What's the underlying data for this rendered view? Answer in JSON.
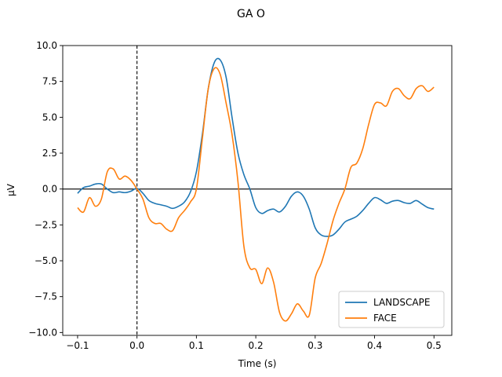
{
  "chart_data": {
    "type": "line",
    "title": "GA O",
    "xlabel": "Time (s)",
    "ylabel": "µV",
    "xlim": [
      -0.125,
      0.53
    ],
    "ylim": [
      -10.2,
      10.0
    ],
    "xticks": [
      -0.1,
      0.0,
      0.1,
      0.2,
      0.3,
      0.4,
      0.5
    ],
    "xtick_labels": [
      "−0.1",
      "0.0",
      "0.1",
      "0.2",
      "0.3",
      "0.4",
      "0.5"
    ],
    "yticks": [
      -10.0,
      -7.5,
      -5.0,
      -2.5,
      0.0,
      2.5,
      5.0,
      7.5,
      10.0
    ],
    "ytick_labels": [
      "−10.0",
      "−7.5",
      "−5.0",
      "−2.5",
      "0.0",
      "2.5",
      "5.0",
      "7.5",
      "10.0"
    ],
    "grid": false,
    "legend_position": "lower-right",
    "reference_lines": {
      "horizontal_zero": {
        "y": 0,
        "style": "solid",
        "color": "#000000"
      },
      "vertical_zero": {
        "x": 0,
        "style": "dashed",
        "color": "#000000"
      }
    },
    "series": [
      {
        "name": "LANDSCAPE",
        "color": "#1f77b4",
        "x": [
          -0.1,
          -0.09,
          -0.08,
          -0.07,
          -0.06,
          -0.05,
          -0.04,
          -0.03,
          -0.02,
          -0.01,
          0.0,
          0.01,
          0.02,
          0.03,
          0.04,
          0.05,
          0.06,
          0.07,
          0.08,
          0.09,
          0.1,
          0.11,
          0.12,
          0.13,
          0.14,
          0.15,
          0.16,
          0.17,
          0.18,
          0.19,
          0.2,
          0.21,
          0.22,
          0.23,
          0.24,
          0.25,
          0.26,
          0.27,
          0.28,
          0.29,
          0.3,
          0.31,
          0.32,
          0.33,
          0.34,
          0.35,
          0.36,
          0.37,
          0.38,
          0.39,
          0.4,
          0.41,
          0.42,
          0.43,
          0.44,
          0.45,
          0.46,
          0.47,
          0.48,
          0.49,
          0.5
        ],
        "values": [
          -0.3,
          0.1,
          0.2,
          0.35,
          0.35,
          0.0,
          -0.25,
          -0.2,
          -0.25,
          -0.15,
          0.05,
          -0.3,
          -0.8,
          -1.0,
          -1.1,
          -1.2,
          -1.35,
          -1.2,
          -0.9,
          -0.2,
          1.2,
          3.8,
          7.0,
          8.8,
          9.0,
          7.8,
          5.0,
          2.5,
          1.0,
          0.0,
          -1.3,
          -1.7,
          -1.5,
          -1.4,
          -1.6,
          -1.2,
          -0.5,
          -0.2,
          -0.5,
          -1.4,
          -2.7,
          -3.2,
          -3.3,
          -3.2,
          -2.8,
          -2.3,
          -2.1,
          -1.9,
          -1.5,
          -1.0,
          -0.6,
          -0.75,
          -1.0,
          -0.85,
          -0.8,
          -0.95,
          -1.0,
          -0.8,
          -1.05,
          -1.3,
          -1.4
        ]
      },
      {
        "name": "FACE",
        "color": "#ff7f0e",
        "x": [
          -0.1,
          -0.09,
          -0.08,
          -0.07,
          -0.06,
          -0.05,
          -0.04,
          -0.03,
          -0.02,
          -0.01,
          0.0,
          0.01,
          0.02,
          0.03,
          0.04,
          0.05,
          0.06,
          0.07,
          0.08,
          0.09,
          0.1,
          0.11,
          0.12,
          0.13,
          0.14,
          0.15,
          0.16,
          0.17,
          0.18,
          0.19,
          0.2,
          0.21,
          0.22,
          0.23,
          0.24,
          0.25,
          0.26,
          0.27,
          0.28,
          0.29,
          0.3,
          0.31,
          0.32,
          0.33,
          0.34,
          0.35,
          0.36,
          0.37,
          0.38,
          0.39,
          0.4,
          0.41,
          0.42,
          0.43,
          0.44,
          0.45,
          0.46,
          0.47,
          0.48,
          0.49,
          0.5
        ],
        "values": [
          -1.3,
          -1.6,
          -0.6,
          -1.2,
          -0.7,
          1.2,
          1.4,
          0.7,
          0.9,
          0.6,
          0.0,
          -0.7,
          -2.0,
          -2.4,
          -2.4,
          -2.8,
          -2.9,
          -2.0,
          -1.5,
          -0.9,
          0.0,
          3.5,
          7.0,
          8.4,
          8.0,
          6.0,
          3.8,
          0.5,
          -4.0,
          -5.5,
          -5.6,
          -6.6,
          -5.5,
          -6.5,
          -8.6,
          -9.2,
          -8.7,
          -8.0,
          -8.5,
          -8.8,
          -6.2,
          -5.2,
          -3.8,
          -2.2,
          -1.0,
          0.0,
          1.5,
          1.8,
          2.8,
          4.5,
          5.9,
          6.0,
          5.8,
          6.8,
          7.0,
          6.5,
          6.3,
          7.0,
          7.2,
          6.8,
          7.1
        ]
      }
    ]
  }
}
